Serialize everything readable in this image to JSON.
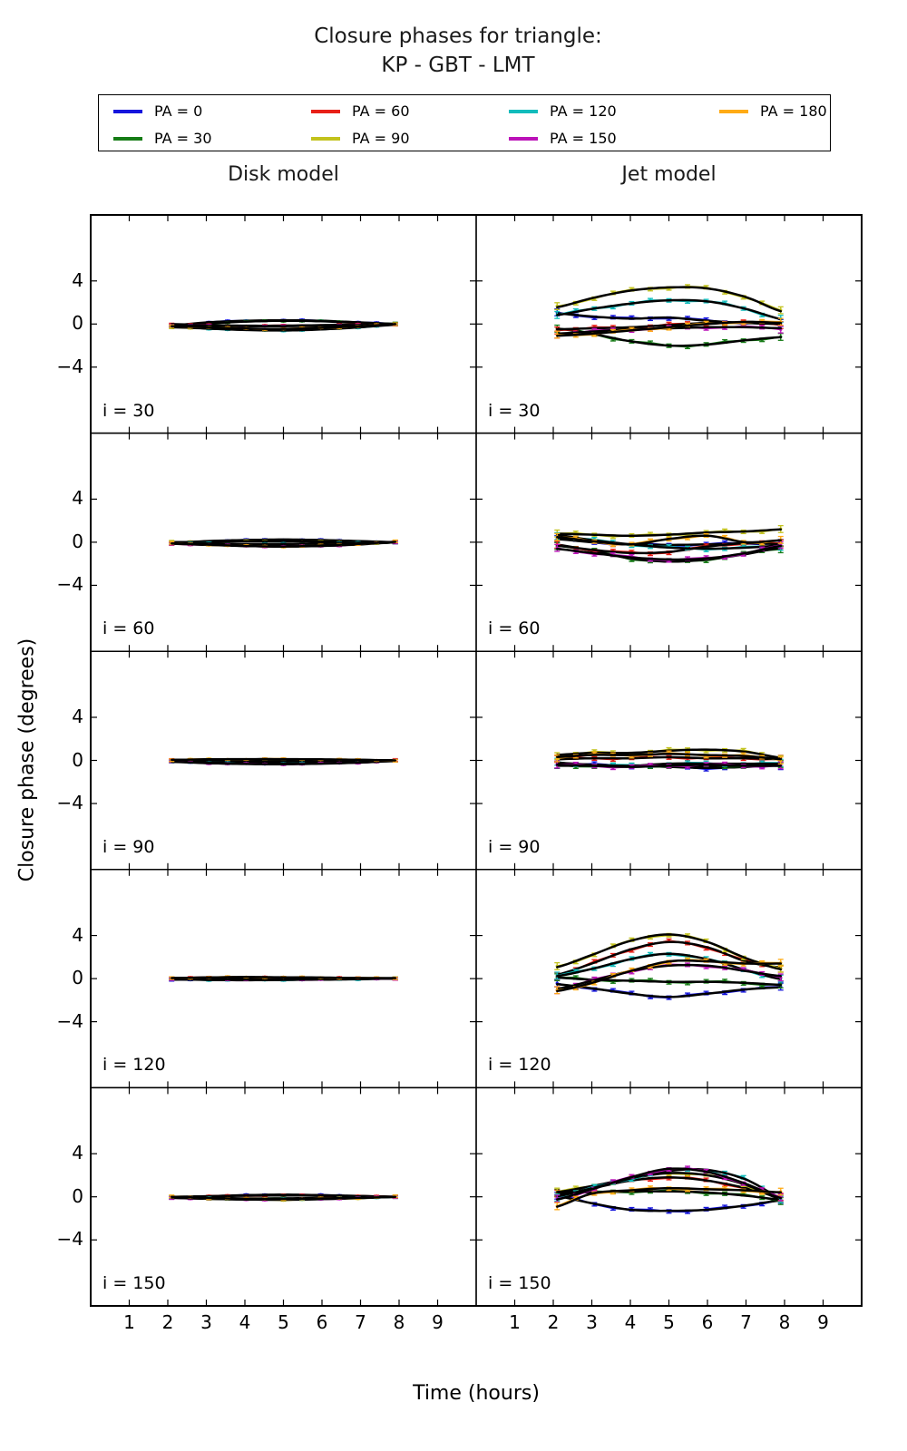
{
  "figure": {
    "title_line1": "Closure phases for triangle:",
    "title_line2": "KP - GBT - LMT",
    "xlabel": "Time (hours)",
    "ylabel": "Closure phase (degrees)"
  },
  "legend": {
    "entries": [
      {
        "label": "PA = 0",
        "color": "#1515dd"
      },
      {
        "label": "PA = 30",
        "color": "#167c16"
      },
      {
        "label": "PA = 60",
        "color": "#e81f17"
      },
      {
        "label": "PA = 90",
        "color": "#c2c21c"
      },
      {
        "label": "PA = 120",
        "color": "#12bcbc"
      },
      {
        "label": "PA = 150",
        "color": "#bb12b8"
      },
      {
        "label": "PA = 180",
        "color": "#ffab15"
      }
    ]
  },
  "chart_data": {
    "type": "line",
    "title": "Closure phases for triangle: KP - GBT - LMT",
    "xlabel": "Time (hours)",
    "ylabel": "Closure phase (degrees)",
    "columns": [
      "Disk model",
      "Jet model"
    ],
    "row_labels": [
      "i = 30",
      "i = 60",
      "i = 90",
      "i = 120",
      "i = 150"
    ],
    "xlim": [
      0,
      10
    ],
    "ylim": [
      -10.1,
      10.1
    ],
    "xtick_values": [
      1,
      2,
      3,
      4,
      5,
      6,
      7,
      8,
      9
    ],
    "xtick_labels": [
      "1",
      "2",
      "3",
      "4",
      "5",
      "6",
      "7",
      "8",
      "9"
    ],
    "ytick_values": [
      4,
      0,
      -4
    ],
    "ytick_labels": [
      "4",
      "0",
      "−4"
    ],
    "model_curve_color": "#000000",
    "x_hours": [
      2,
      3,
      4,
      5,
      6,
      7,
      8
    ],
    "series_order": [
      "PA = 0",
      "PA = 30",
      "PA = 60",
      "PA = 90",
      "PA = 120",
      "PA = 150",
      "PA = 180"
    ],
    "panels": [
      {
        "model": "Disk model",
        "label": "i = 30",
        "series": [
          [
            -0.15,
            0.15,
            0.3,
            0.35,
            0.3,
            0.15,
            0.0
          ],
          [
            -0.2,
            0.05,
            0.22,
            0.3,
            0.25,
            0.1,
            0.0
          ],
          [
            0.0,
            -0.1,
            -0.15,
            -0.15,
            -0.1,
            -0.05,
            0.0
          ],
          [
            -0.3,
            -0.38,
            -0.5,
            -0.55,
            -0.45,
            -0.25,
            -0.05
          ],
          [
            -0.25,
            -0.42,
            -0.55,
            -0.6,
            -0.5,
            -0.3,
            -0.05
          ],
          [
            -0.1,
            -0.15,
            -0.2,
            -0.2,
            -0.15,
            -0.1,
            0.0
          ],
          [
            -0.2,
            -0.3,
            -0.42,
            -0.45,
            -0.35,
            -0.2,
            0.0
          ]
        ]
      },
      {
        "model": "Jet model",
        "label": "i = 30",
        "series": [
          [
            1.0,
            0.7,
            0.5,
            0.6,
            0.3,
            0.1,
            0.0
          ],
          [
            -0.4,
            -0.9,
            -1.6,
            -2.0,
            -1.9,
            -1.5,
            -1.2
          ],
          [
            -0.5,
            -0.4,
            -0.3,
            -0.1,
            0.1,
            0.1,
            0.0
          ],
          [
            1.5,
            2.4,
            3.1,
            3.4,
            3.3,
            2.5,
            1.1
          ],
          [
            0.8,
            1.4,
            1.9,
            2.2,
            2.1,
            1.4,
            0.4
          ],
          [
            -0.9,
            -0.7,
            -0.5,
            -0.4,
            -0.3,
            -0.3,
            -0.4
          ],
          [
            -1.1,
            -0.9,
            -0.6,
            -0.3,
            0.0,
            0.2,
            0.1
          ]
        ]
      },
      {
        "model": "Disk model",
        "label": "i = 60",
        "series": [
          [
            -0.1,
            0.1,
            0.2,
            0.25,
            0.2,
            0.1,
            0.0
          ],
          [
            -0.1,
            -0.18,
            -0.25,
            -0.3,
            -0.25,
            -0.15,
            0.0
          ],
          [
            -0.15,
            -0.22,
            -0.3,
            -0.35,
            -0.3,
            -0.15,
            0.0
          ],
          [
            0.0,
            0.05,
            0.1,
            0.1,
            0.08,
            0.05,
            0.0
          ],
          [
            -0.05,
            -0.1,
            -0.15,
            -0.15,
            -0.1,
            -0.05,
            0.0
          ],
          [
            -0.12,
            -0.25,
            -0.35,
            -0.4,
            -0.35,
            -0.2,
            0.0
          ],
          [
            -0.1,
            -0.22,
            -0.35,
            -0.4,
            -0.3,
            -0.15,
            0.05
          ]
        ]
      },
      {
        "model": "Jet model",
        "label": "i = 60",
        "series": [
          [
            0.3,
            0.0,
            -0.2,
            -0.25,
            -0.2,
            -0.1,
            -0.1
          ],
          [
            -0.2,
            -0.8,
            -1.5,
            -1.8,
            -1.6,
            -1.1,
            -0.5
          ],
          [
            -0.3,
            -0.7,
            -1.0,
            -0.9,
            -0.4,
            -0.1,
            -0.2
          ],
          [
            0.8,
            0.7,
            0.6,
            0.7,
            0.9,
            1.0,
            1.2
          ],
          [
            0.7,
            0.2,
            -0.2,
            -0.5,
            -0.6,
            -0.5,
            -0.3
          ],
          [
            -0.6,
            -1.0,
            -1.4,
            -1.6,
            -1.5,
            -1.0,
            -0.3
          ],
          [
            0.5,
            0.1,
            -0.2,
            0.3,
            0.6,
            0.0,
            0.2
          ]
        ]
      },
      {
        "model": "Disk model",
        "label": "i = 90",
        "series": [
          [
            0.0,
            0.05,
            0.1,
            0.1,
            0.07,
            0.05,
            0.0
          ],
          [
            -0.05,
            -0.12,
            -0.2,
            -0.25,
            -0.2,
            -0.1,
            0.0
          ],
          [
            0.0,
            0.0,
            -0.05,
            -0.05,
            -0.05,
            0.0,
            0.0
          ],
          [
            -0.05,
            -0.08,
            -0.1,
            -0.1,
            -0.1,
            -0.05,
            0.0
          ],
          [
            -0.1,
            -0.2,
            -0.28,
            -0.3,
            -0.25,
            -0.15,
            0.0
          ],
          [
            -0.12,
            -0.25,
            -0.33,
            -0.35,
            -0.3,
            -0.2,
            -0.05
          ],
          [
            0.05,
            0.1,
            0.12,
            0.12,
            0.1,
            0.05,
            0.0
          ]
        ]
      },
      {
        "model": "Jet model",
        "label": "i = 90",
        "series": [
          [
            -0.3,
            -0.4,
            -0.5,
            -0.6,
            -0.7,
            -0.6,
            -0.4
          ],
          [
            -0.5,
            -0.5,
            -0.5,
            -0.5,
            -0.5,
            -0.5,
            -0.4
          ],
          [
            0.1,
            0.2,
            0.2,
            0.3,
            0.2,
            0.2,
            0.1
          ],
          [
            0.5,
            0.7,
            0.7,
            0.9,
            1.0,
            0.8,
            0.2
          ],
          [
            -0.2,
            -0.4,
            -0.5,
            -0.3,
            -0.3,
            -0.3,
            -0.3
          ],
          [
            -0.4,
            -0.5,
            -0.6,
            -0.5,
            -0.4,
            -0.5,
            -0.5
          ],
          [
            0.3,
            0.5,
            0.5,
            0.6,
            0.5,
            0.4,
            0.1
          ]
        ]
      },
      {
        "model": "Disk model",
        "label": "i = 120",
        "series": [
          [
            -0.1,
            -0.05,
            0.0,
            0.0,
            0.0,
            0.0,
            0.0
          ],
          [
            0.0,
            -0.05,
            -0.1,
            -0.1,
            -0.05,
            0.0,
            0.0
          ],
          [
            0.05,
            0.1,
            0.12,
            0.1,
            0.08,
            0.05,
            0.0
          ],
          [
            0.0,
            0.05,
            0.05,
            0.06,
            0.05,
            0.0,
            0.0
          ],
          [
            -0.05,
            -0.12,
            -0.15,
            -0.12,
            -0.1,
            -0.05,
            0.0
          ],
          [
            0.0,
            -0.05,
            -0.08,
            -0.1,
            -0.05,
            0.0,
            0.0
          ],
          [
            0.05,
            0.1,
            0.15,
            0.12,
            0.1,
            0.05,
            0.05
          ]
        ]
      },
      {
        "model": "Jet model",
        "label": "i = 120",
        "series": [
          [
            -0.5,
            -0.9,
            -1.4,
            -1.7,
            -1.4,
            -1.0,
            -0.8
          ],
          [
            0.1,
            -0.1,
            -0.2,
            -0.3,
            -0.3,
            -0.4,
            -0.6
          ],
          [
            0.3,
            1.4,
            2.7,
            3.4,
            2.9,
            1.6,
            1.0
          ],
          [
            1.0,
            2.2,
            3.5,
            4.1,
            3.4,
            1.9,
            0.8
          ],
          [
            0.2,
            0.9,
            1.8,
            2.3,
            1.8,
            0.8,
            -0.1
          ],
          [
            -1.0,
            -0.2,
            0.7,
            1.2,
            1.2,
            0.7,
            0.2
          ],
          [
            -1.2,
            -0.4,
            0.7,
            1.6,
            1.6,
            1.4,
            1.4
          ]
        ]
      },
      {
        "model": "Disk model",
        "label": "i = 150",
        "series": [
          [
            -0.08,
            0.05,
            0.15,
            0.2,
            0.15,
            0.08,
            0.0
          ],
          [
            -0.05,
            -0.1,
            -0.15,
            -0.15,
            -0.1,
            -0.05,
            0.0
          ],
          [
            0.0,
            0.05,
            0.1,
            0.12,
            0.1,
            0.05,
            0.0
          ],
          [
            -0.08,
            -0.18,
            -0.25,
            -0.28,
            -0.22,
            -0.12,
            0.0
          ],
          [
            -0.05,
            -0.12,
            -0.2,
            -0.22,
            -0.18,
            -0.1,
            0.0
          ],
          [
            -0.1,
            -0.18,
            -0.25,
            -0.25,
            -0.2,
            -0.1,
            0.0
          ],
          [
            0.0,
            -0.1,
            -0.18,
            -0.2,
            -0.15,
            -0.1,
            0.0
          ]
        ]
      },
      {
        "model": "Jet model",
        "label": "i = 150",
        "series": [
          [
            0.1,
            -0.6,
            -1.2,
            -1.3,
            -1.2,
            -0.8,
            -0.3
          ],
          [
            0.5,
            0.4,
            0.5,
            0.5,
            0.4,
            0.1,
            -0.3
          ],
          [
            0.2,
            0.8,
            1.5,
            1.8,
            1.5,
            0.8,
            -0.1
          ],
          [
            0.4,
            1.0,
            1.7,
            2.2,
            2.0,
            1.1,
            -0.3
          ],
          [
            0.0,
            0.8,
            1.7,
            2.4,
            2.5,
            1.6,
            -0.2
          ],
          [
            -0.3,
            0.7,
            1.8,
            2.6,
            2.3,
            1.2,
            -0.2
          ],
          [
            -1.0,
            0.3,
            0.6,
            0.8,
            0.7,
            0.6,
            0.4
          ]
        ]
      }
    ]
  }
}
